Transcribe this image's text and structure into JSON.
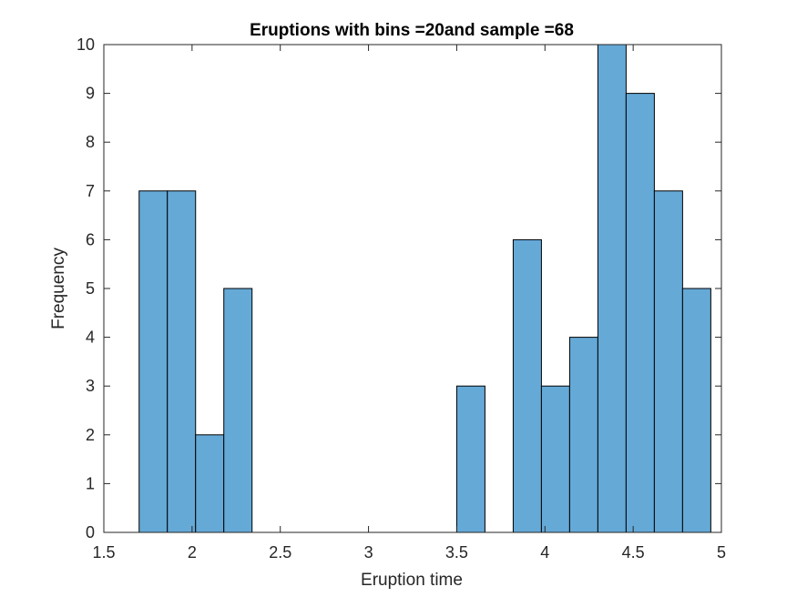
{
  "chart_data": {
    "type": "bar",
    "title": "Eruptions with bins =20and sample =68",
    "xlabel": "Eruption time",
    "ylabel": "Frequency",
    "xlim": [
      1.5,
      5
    ],
    "ylim": [
      0,
      10
    ],
    "bin_width": 0.16,
    "bins": [
      {
        "start": 1.7,
        "end": 1.86,
        "value": 7
      },
      {
        "start": 1.86,
        "end": 2.02,
        "value": 7
      },
      {
        "start": 2.02,
        "end": 2.18,
        "value": 2
      },
      {
        "start": 2.18,
        "end": 2.34,
        "value": 5
      },
      {
        "start": 3.5,
        "end": 3.66,
        "value": 3
      },
      {
        "start": 3.82,
        "end": 3.98,
        "value": 6
      },
      {
        "start": 3.98,
        "end": 4.14,
        "value": 3
      },
      {
        "start": 4.14,
        "end": 4.3,
        "value": 4
      },
      {
        "start": 4.3,
        "end": 4.46,
        "value": 10
      },
      {
        "start": 4.46,
        "end": 4.62,
        "value": 9
      },
      {
        "start": 4.62,
        "end": 4.78,
        "value": 7
      },
      {
        "start": 4.78,
        "end": 4.94,
        "value": 5
      }
    ],
    "x_ticks": [
      "1.5",
      "2",
      "2.5",
      "3",
      "3.5",
      "4",
      "4.5",
      "5"
    ],
    "y_ticks": [
      "0",
      "1",
      "2",
      "3",
      "4",
      "5",
      "6",
      "7",
      "8",
      "9",
      "10"
    ],
    "bar_color": "#65a9d7",
    "edge_color": "#000000",
    "grid": false,
    "box": true
  }
}
